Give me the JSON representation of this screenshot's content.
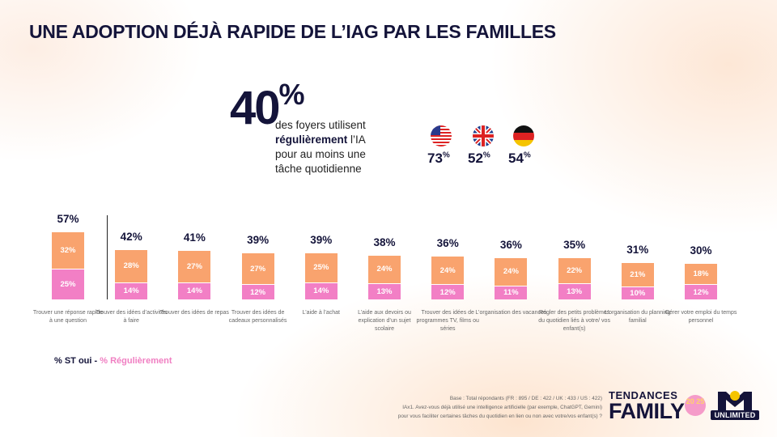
{
  "title": "UNE ADOPTION DÉJÀ RAPIDE DE L’IAG PAR LES FAMILLES",
  "headline": {
    "value": "40",
    "unit": "%",
    "line1": "des foyers utilisent",
    "bold": "régulièrement",
    "after_bold": " l’IA",
    "line3": "pour au moins une",
    "line4": "tâche quotidienne"
  },
  "countries": [
    {
      "flag": "us-flag-icon",
      "value": "73",
      "unit": "%"
    },
    {
      "flag": "uk-flag-icon",
      "value": "52",
      "unit": "%"
    },
    {
      "flag": "germany-flag-icon",
      "value": "54",
      "unit": "%"
    }
  ],
  "colors": {
    "st_oui": "#F9A36E",
    "regulierement": "#F27FC5",
    "dark": "#14143A"
  },
  "chart_data": {
    "type": "bar",
    "stacked": true,
    "categories": [
      "Trouver une réponse rapide à une question",
      "Trouver des idées d’activités à faire",
      "Trouver des idées de repas",
      "Trouver des idées de cadeaux personnalisés",
      "L’aide à l’achat",
      "L’aide aux devoirs ou explication d’un sujet scolaire",
      "Trouver des idées de programmes TV, films ou séries",
      "L’organisation des vacances",
      "Régler des petits problèmes du quotidien liés à votre/ vos enfant(s)",
      "L’organisation du planning familial",
      "Gérer votre emploi du temps personnel"
    ],
    "totals": [
      57,
      42,
      41,
      39,
      39,
      38,
      36,
      36,
      35,
      31,
      30
    ],
    "series": [
      {
        "name": "% Régulièrement",
        "values": [
          25,
          14,
          14,
          12,
          14,
          13,
          12,
          11,
          13,
          10,
          12
        ]
      },
      {
        "values": [
          32,
          28,
          27,
          27,
          25,
          24,
          24,
          24,
          22,
          21,
          18
        ]
      }
    ],
    "legend": {
      "a": "% ST oui",
      "sep": " - ",
      "b": "% Régulièrement"
    }
  },
  "footer": {
    "base": "Base : Total répondants (FR : 895 / DE : 422 / UK : 433 / US : 422)",
    "q1": "IAx1. Avez-vous déjà utilisé une intelligence artificielle (par exemple, ChatGPT, Gemini)",
    "q2": "pour vous faciliter certaines tâches du quotidien en lien ou non avec votre/vos enfant(s) ?"
  },
  "logos": {
    "tendances": "TENDANCES",
    "family": "FAMILY",
    "year": "20 25",
    "m6": "UNLIMITED"
  }
}
